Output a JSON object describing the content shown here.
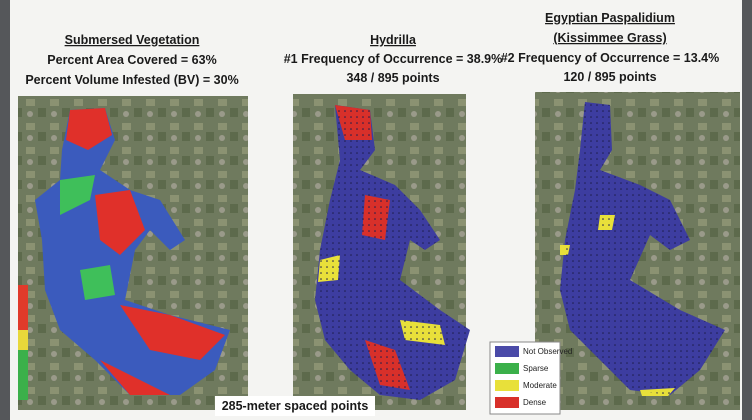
{
  "panels": [
    {
      "title": "Submersed Vegetation",
      "lines": [
        "Percent Area Covered = 63%",
        "Percent Volume Infested (BV) = 30%"
      ]
    },
    {
      "title": "Hydrilla",
      "lines": [
        "#1 Frequency of Occurrence = 38.9%",
        "348 / 895 points"
      ]
    },
    {
      "title": "Egyptian Paspalidium",
      "subtitle": "(Kissimmee Grass)",
      "lines": [
        "#2 Frequency of Occurrence = 13.4%",
        "120 / 895 points"
      ]
    }
  ],
  "legend": [
    "Not Observed",
    "Sparse",
    "Moderate",
    "Dense"
  ],
  "footnote": "285-meter spaced points"
}
